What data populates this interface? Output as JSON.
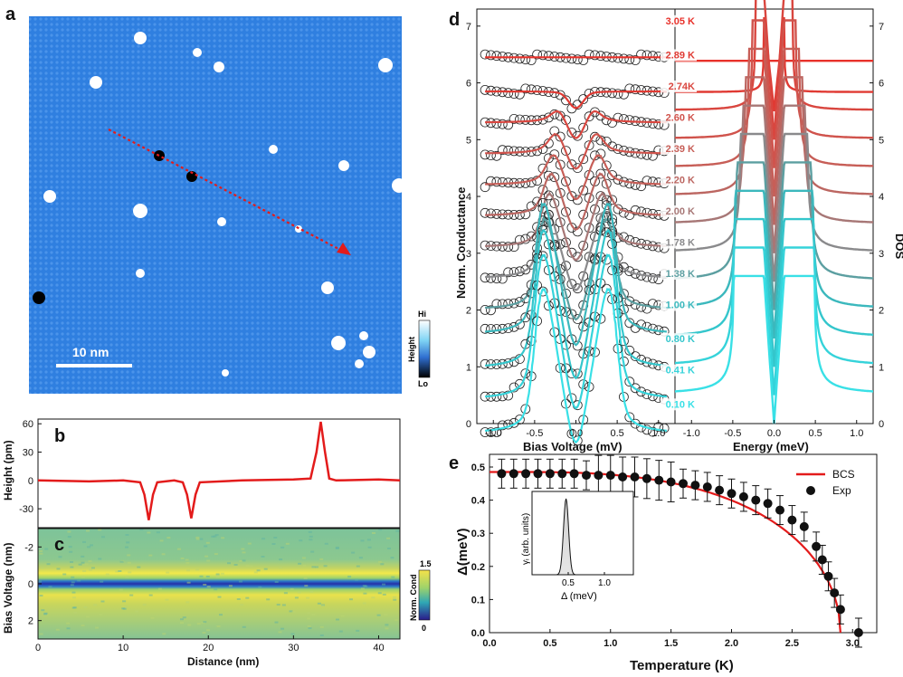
{
  "panels": {
    "a": "a",
    "b": "b",
    "c": "c",
    "d": "d",
    "e": "e"
  },
  "panel_a": {
    "scalebar": "10 nm",
    "colorbar_hi": "Hi",
    "colorbar_lo": "Lo",
    "colorbar_label": "Height"
  },
  "panel_b": {
    "ylabel": "Height (pm)",
    "yticks": [
      "60",
      "30",
      "0",
      "-30"
    ]
  },
  "panel_c": {
    "ylabel": "Bias Voltage (nm)",
    "yticks": [
      "-2",
      "0",
      "2"
    ],
    "xlabel": "Distance (nm)",
    "xticks": [
      "0",
      "10",
      "20",
      "30",
      "40"
    ],
    "colorbar_label": "Norm. Cond",
    "colorbar_max": "1.5",
    "colorbar_min": "0"
  },
  "panel_d": {
    "left_ylabel": "Norm. Conductance",
    "right_ylabel": "DOS",
    "left_xlabel": "Bias Voltage (mV)",
    "right_xlabel": "Energy (meV)",
    "left_xticks": [
      "-1.0",
      "-0.5",
      "0.0",
      "0.5",
      "1.0"
    ],
    "right_xticks": [
      "-1.0",
      "-0.5",
      "0.0",
      "0.5",
      "1.0"
    ],
    "yticks": [
      "0",
      "1",
      "2",
      "3",
      "4",
      "5",
      "6",
      "7"
    ],
    "temperatures": [
      "3.05 K",
      "2.89 K",
      "2.74K",
      "2.60 K",
      "2.39 K",
      "2.20 K",
      "2.00 K",
      "1.78 K",
      "1.38 K",
      "1.00 K",
      "0.80 K",
      "0.41 K",
      "0.10 K"
    ],
    "colors": [
      "#e8312a",
      "#e03a33",
      "#d9463f",
      "#d0534c",
      "#c75e57",
      "#bc6661",
      "#a77776",
      "#8a8a8c",
      "#5c9fa1",
      "#3bb8bd",
      "#34c6cc",
      "#35d3da",
      "#39e0e6"
    ]
  },
  "panel_e": {
    "inset_xlabel": "Δ (meV)",
    "inset_ylabel": "γᵢ (arb. units)",
    "inset_xticks": [
      "0.5",
      "1.0"
    ]
  },
  "chart_data": [
    {
      "type": "line",
      "title": "b",
      "xlabel": "",
      "ylabel": "Height (pm)",
      "ylim": [
        -50,
        65
      ],
      "x": [
        0,
        6,
        10,
        12,
        12.5,
        13,
        13.5,
        14,
        16,
        17,
        17.5,
        18,
        18.5,
        19,
        24,
        30,
        32,
        32.7,
        33.2,
        33.7,
        34.2,
        35,
        40,
        42.5
      ],
      "y": [
        0,
        -1,
        0,
        -2,
        -15,
        -42,
        -15,
        -2,
        0,
        -2,
        -15,
        -40,
        -15,
        -2,
        0,
        1,
        2,
        30,
        62,
        30,
        2,
        0,
        1,
        0
      ]
    },
    {
      "type": "heatmap",
      "title": "c",
      "xlabel": "Distance (nm)",
      "ylabel": "Bias Voltage (nm)",
      "xlim": [
        0,
        42.5
      ],
      "ylim": [
        -3,
        3
      ],
      "zlim": [
        0,
        1.5
      ]
    },
    {
      "type": "line",
      "title": "d (left)",
      "xlabel": "Bias Voltage (mV)",
      "ylabel": "Norm. Conductance",
      "xlim": [
        -1.2,
        1.2
      ],
      "ylim": [
        0,
        7.3
      ],
      "series_temperatures_K": [
        3.05,
        2.89,
        2.74,
        2.6,
        2.39,
        2.2,
        2.0,
        1.78,
        1.38,
        1.0,
        0.8,
        0.41,
        0.1
      ],
      "gap_meV": [
        0,
        0.12,
        0.22,
        0.26,
        0.3,
        0.34,
        0.37,
        0.4,
        0.44,
        0.46,
        0.47,
        0.48,
        0.48
      ],
      "offsets": [
        7.0,
        6.4,
        5.85,
        5.3,
        4.75,
        4.2,
        3.65,
        3.1,
        2.55,
        2.0,
        1.4,
        0.85,
        0.25
      ]
    },
    {
      "type": "line",
      "title": "d (right)",
      "xlabel": "Energy (meV)",
      "ylabel": "DOS",
      "xlim": [
        -1.2,
        1.2
      ],
      "ylim": [
        0,
        7.3
      ],
      "offsets": [
        7.0,
        6.45,
        5.95,
        5.45,
        4.95,
        4.45,
        3.95,
        3.45,
        2.95,
        2.45,
        1.95,
        1.45,
        0.95
      ]
    },
    {
      "type": "scatter",
      "title": "e",
      "xlabel": "Temperature (K)",
      "ylabel": "Δ(meV)",
      "xlim": [
        0,
        3.2
      ],
      "ylim": [
        0,
        0.5
      ],
      "xticks": [
        "0.0",
        "0.5",
        "1.0",
        "1.5",
        "2.0",
        "2.5",
        "3.0"
      ],
      "yticks": [
        "0.0",
        "0.1",
        "0.2",
        "0.3",
        "0.4",
        "0.5"
      ],
      "legend": [
        "BCS",
        "Exp"
      ],
      "exp_T": [
        0.1,
        0.2,
        0.3,
        0.4,
        0.5,
        0.6,
        0.7,
        0.8,
        0.9,
        1.0,
        1.1,
        1.2,
        1.3,
        1.4,
        1.5,
        1.6,
        1.7,
        1.8,
        1.9,
        2.0,
        2.1,
        2.2,
        2.3,
        2.4,
        2.5,
        2.6,
        2.7,
        2.75,
        2.8,
        2.85,
        2.9,
        3.05
      ],
      "exp_delta": [
        0.48,
        0.48,
        0.48,
        0.48,
        0.48,
        0.48,
        0.48,
        0.475,
        0.475,
        0.475,
        0.47,
        0.47,
        0.465,
        0.46,
        0.455,
        0.45,
        0.445,
        0.44,
        0.43,
        0.42,
        0.41,
        0.4,
        0.39,
        0.37,
        0.34,
        0.32,
        0.26,
        0.22,
        0.17,
        0.12,
        0.07,
        0.0
      ],
      "bcs_delta0": 0.485,
      "bcs_Tc": 2.9
    }
  ]
}
